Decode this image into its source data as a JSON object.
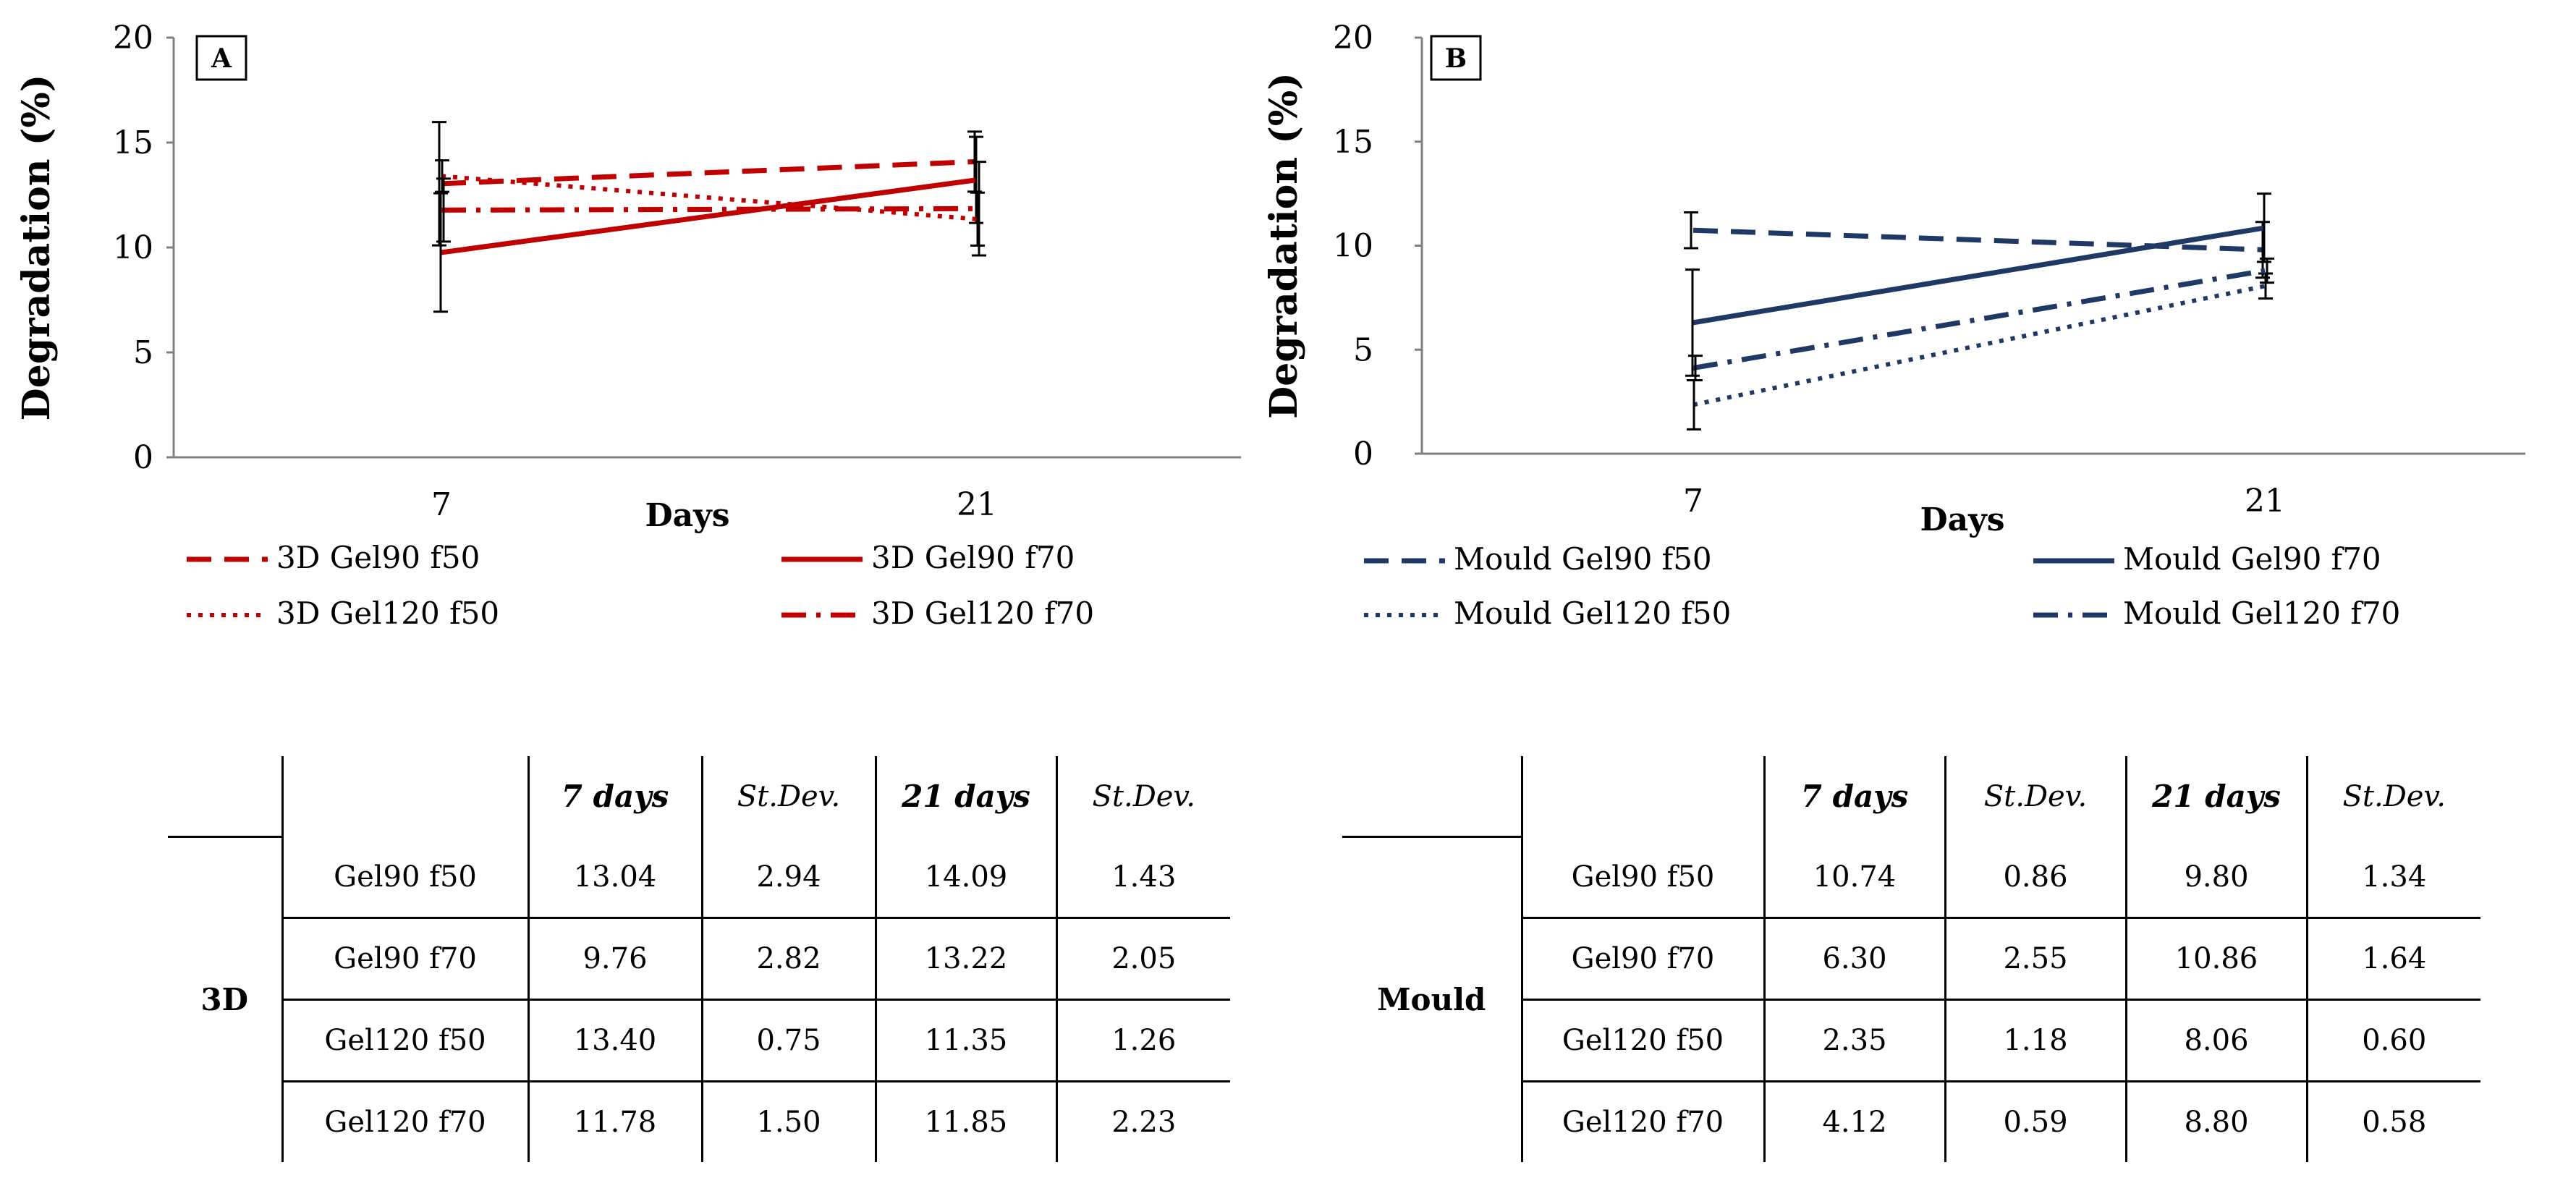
{
  "chart_data": [
    {
      "panel": "A",
      "type": "line",
      "x": [
        "7",
        "21"
      ],
      "xlabel": "Days",
      "ylabel": "Degradation (%)",
      "ylim": [
        0,
        20
      ],
      "yticks": [
        "0",
        "5",
        "10",
        "15",
        "20"
      ],
      "color": "#c00000",
      "series": [
        {
          "name": "3D Gel90 f50",
          "values": [
            13.04,
            14.09
          ],
          "err": [
            2.94,
            1.43
          ],
          "dash": "dash"
        },
        {
          "name": "3D Gel90 f70",
          "values": [
            9.76,
            13.22
          ],
          "err": [
            2.82,
            2.05
          ],
          "dash": "solid"
        },
        {
          "name": "3D Gel120 f50",
          "values": [
            13.4,
            11.35
          ],
          "err": [
            0.75,
            1.26
          ],
          "dash": "dot"
        },
        {
          "name": "3D Gel120 f70",
          "values": [
            11.78,
            11.85
          ],
          "err": [
            1.5,
            2.23
          ],
          "dash": "dashdot"
        }
      ]
    },
    {
      "panel": "B",
      "type": "line",
      "x": [
        "7",
        "21"
      ],
      "xlabel": "Days",
      "ylabel": "Degradation (%)",
      "ylim": [
        0,
        20
      ],
      "yticks": [
        "0",
        "5",
        "10",
        "15",
        "20"
      ],
      "color": "#1f3864",
      "series": [
        {
          "name": "Mould Gel90 f50",
          "values": [
            10.74,
            9.8
          ],
          "err": [
            0.86,
            1.34
          ],
          "dash": "dash"
        },
        {
          "name": "Mould Gel90 f70",
          "values": [
            6.3,
            10.86
          ],
          "err": [
            2.55,
            1.64
          ],
          "dash": "solid"
        },
        {
          "name": "Mould Gel120 f50",
          "values": [
            2.35,
            8.06
          ],
          "err": [
            1.18,
            0.6
          ],
          "dash": "dot"
        },
        {
          "name": "Mould Gel120 f70",
          "values": [
            4.12,
            8.8
          ],
          "err": [
            0.59,
            0.58
          ],
          "dash": "dashdot"
        }
      ]
    }
  ],
  "tables": [
    {
      "group": "3D",
      "headers": [
        "7 days",
        "St.Dev.",
        "21 days",
        "St.Dev."
      ],
      "rows": [
        {
          "label": "Gel90 f50",
          "cells": [
            "13.04",
            "2.94",
            "14.09",
            "1.43"
          ]
        },
        {
          "label": "Gel90 f70",
          "cells": [
            "9.76",
            "2.82",
            "13.22",
            "2.05"
          ]
        },
        {
          "label": "Gel120 f50",
          "cells": [
            "13.40",
            "0.75",
            "11.35",
            "1.26"
          ]
        },
        {
          "label": "Gel120 f70",
          "cells": [
            "11.78",
            "1.50",
            "11.85",
            "2.23"
          ]
        }
      ]
    },
    {
      "group": "Mould",
      "headers": [
        "7 days",
        "St.Dev.",
        "21 days",
        "St.Dev."
      ],
      "rows": [
        {
          "label": "Gel90 f50",
          "cells": [
            "10.74",
            "0.86",
            "9.80",
            "1.34"
          ]
        },
        {
          "label": "Gel90 f70",
          "cells": [
            "6.30",
            "2.55",
            "10.86",
            "1.64"
          ]
        },
        {
          "label": "Gel120 f50",
          "cells": [
            "2.35",
            "1.18",
            "8.06",
            "0.60"
          ]
        },
        {
          "label": "Gel120 f70",
          "cells": [
            "4.12",
            "0.59",
            "8.80",
            "0.58"
          ]
        }
      ]
    }
  ]
}
